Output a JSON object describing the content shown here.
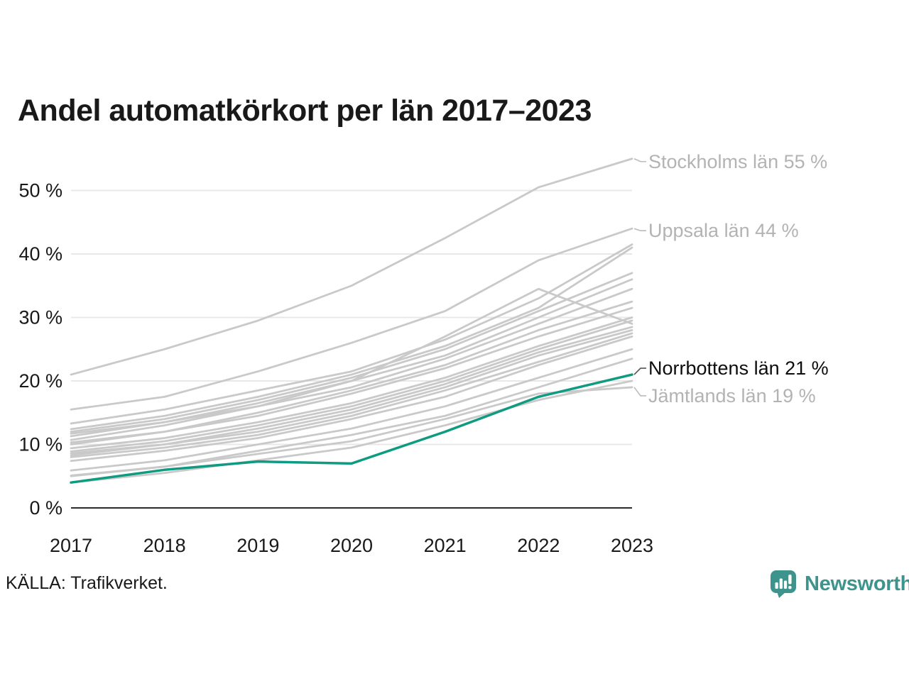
{
  "page": {
    "title": "Andel automatkörkort per län 2017–2023",
    "source": "KÄLLA: Trafikverket."
  },
  "branding": {
    "name": "Newsworthy",
    "brand_color": "#3d948c"
  },
  "colors": {
    "highlight_line": "#0f9a82",
    "gray_line": "#c9c9c9",
    "grid_line": "#e8e8e8",
    "axis_line": "#2b2b2b",
    "tick_text": "#191919",
    "muted_label": "#b3b3b3",
    "dark_label": "#0d0d0d",
    "connector_muted": "#bbbbbb",
    "connector_dark": "#555555"
  },
  "chart_data": {
    "type": "line",
    "title": "Andel automatkörkort per län 2017–2023",
    "xlabel": "",
    "ylabel": "",
    "x": [
      2017,
      2018,
      2019,
      2020,
      2021,
      2022,
      2023
    ],
    "x_tick_labels": [
      "2017",
      "2018",
      "2019",
      "2020",
      "2021",
      "2022",
      "2023"
    ],
    "y_ticks": [
      0,
      10,
      20,
      30,
      40,
      50
    ],
    "y_tick_labels": [
      "0 %",
      "10 %",
      "20 %",
      "30 %",
      "40 %",
      "50 %"
    ],
    "ylim": [
      0,
      57
    ],
    "grid": "horizontal",
    "legend_position": "right-edge-annotations",
    "series": [
      {
        "name": "Stockholms län",
        "highlight": false,
        "values": [
          21,
          25,
          29.5,
          35,
          42.5,
          50.5,
          55
        ]
      },
      {
        "name": "Uppsala län",
        "highlight": false,
        "values": [
          15.5,
          17.5,
          21.5,
          26,
          31,
          39,
          44
        ]
      },
      {
        "name": "",
        "highlight": false,
        "values": [
          13.3,
          15.5,
          18.5,
          21.5,
          26.5,
          33,
          41.5
        ]
      },
      {
        "name": "",
        "highlight": false,
        "values": [
          12.4,
          14.5,
          17.5,
          21,
          25.5,
          31.5,
          41
        ]
      },
      {
        "name": "",
        "highlight": false,
        "values": [
          12,
          14,
          17,
          20.5,
          25,
          31,
          37
        ]
      },
      {
        "name": "",
        "highlight": false,
        "values": [
          11.7,
          13.5,
          16.5,
          20,
          24,
          30,
          36
        ]
      },
      {
        "name": "",
        "highlight": false,
        "values": [
          10.7,
          13,
          16,
          20,
          27,
          34.5,
          29
        ]
      },
      {
        "name": "",
        "highlight": false,
        "values": [
          11.3,
          13.5,
          16,
          19,
          23.5,
          29,
          34.5
        ]
      },
      {
        "name": "",
        "highlight": false,
        "values": [
          10.3,
          12,
          15,
          18.5,
          22.5,
          28,
          32.5
        ]
      },
      {
        "name": "",
        "highlight": false,
        "values": [
          10,
          12,
          14.5,
          18,
          22,
          27,
          31.5
        ]
      },
      {
        "name": "",
        "highlight": false,
        "values": [
          9.4,
          11,
          13.5,
          16.5,
          20.5,
          25.5,
          30
        ]
      },
      {
        "name": "",
        "highlight": false,
        "values": [
          8.9,
          10.5,
          13,
          16,
          20,
          25,
          29.5
        ]
      },
      {
        "name": "",
        "highlight": false,
        "values": [
          8.6,
          10,
          12.5,
          15.5,
          19.5,
          24.5,
          28.5
        ]
      },
      {
        "name": "",
        "highlight": false,
        "values": [
          8.3,
          10,
          12,
          15,
          19,
          24,
          28
        ]
      },
      {
        "name": "",
        "highlight": false,
        "values": [
          8,
          9.5,
          11.5,
          14.5,
          18.5,
          23,
          27.5
        ]
      },
      {
        "name": "",
        "highlight": false,
        "values": [
          7.4,
          9,
          11,
          14,
          17.5,
          22.5,
          27
        ]
      },
      {
        "name": "",
        "highlight": false,
        "values": [
          5.9,
          7.5,
          10,
          12.5,
          16,
          20.5,
          25
        ]
      },
      {
        "name": "",
        "highlight": false,
        "values": [
          5.1,
          6.5,
          9,
          11.5,
          14.5,
          19,
          23.5
        ]
      },
      {
        "name": "",
        "highlight": false,
        "values": [
          4,
          5.5,
          7.5,
          9.5,
          13,
          17,
          20
        ]
      },
      {
        "name": "Jämtlands län",
        "highlight": false,
        "values": [
          5,
          6.5,
          8.5,
          10.5,
          14,
          18,
          19
        ]
      },
      {
        "name": "Norrbottens län",
        "highlight": true,
        "values": [
          4,
          6,
          7.3,
          7,
          12,
          17.5,
          21
        ]
      }
    ],
    "annotations": [
      {
        "text": "Stockholms län 55 %",
        "value": 55,
        "style": "muted"
      },
      {
        "text": "Uppsala län 44 %",
        "value": 44,
        "style": "muted"
      },
      {
        "text": "Norrbottens län 21 %",
        "value": 21,
        "style": "emphasis"
      },
      {
        "text": "Jämtlands län 19 %",
        "value": 19,
        "style": "muted"
      }
    ]
  }
}
